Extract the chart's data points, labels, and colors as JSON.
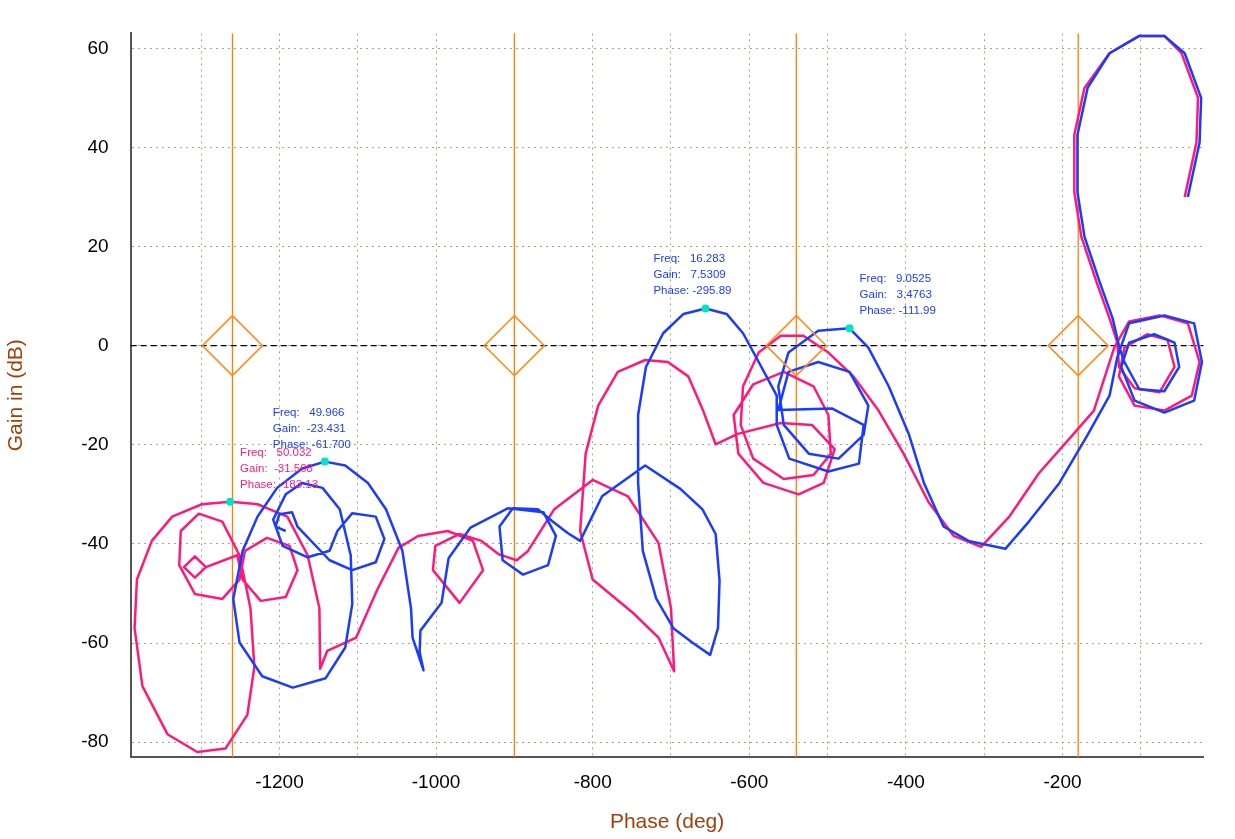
{
  "chart_data": {
    "type": "line",
    "xlabel": "Phase (deg)",
    "ylabel": "Gain in (dB)",
    "xlim": [
      -1390,
      -20
    ],
    "ylim": [
      -83,
      63
    ],
    "xticks": [
      {
        "value": -1300,
        "label": null
      },
      -1200,
      {
        "value": -1100,
        "label": null
      },
      -1000,
      {
        "value": -900,
        "label": null
      },
      -800,
      {
        "value": -700,
        "label": null
      },
      -600,
      {
        "value": -500,
        "label": null
      },
      -400,
      {
        "value": -300,
        "label": null
      },
      -200,
      {
        "value": -100,
        "label": null
      }
    ],
    "yticks": [
      -80,
      -60,
      -40,
      -20,
      0,
      20,
      40,
      60
    ],
    "grid": true,
    "legend": false,
    "marker": "none",
    "line_style": "solid",
    "ref_lines": [
      {
        "axis": "x",
        "value": -1260,
        "color": "#ff7f00"
      },
      {
        "axis": "x",
        "value": -900,
        "color": "#ff7f00"
      },
      {
        "axis": "x",
        "value": -540,
        "color": "#ff7f00"
      },
      {
        "axis": "x",
        "value": -180,
        "color": "#ff7f00"
      },
      {
        "axis": "y",
        "value": 0,
        "color": "#000000",
        "line_style": "dashed"
      }
    ],
    "annotations": [
      {
        "text": "Freq:   49.966\nGain:  -23.431\nPhase: -61.700",
        "x": -1142,
        "y": -23.4
      },
      {
        "text": "Freq:   50.032\nGain:  -31.508\nPhase: -183.13",
        "x": -1263,
        "y": -31.5
      },
      {
        "text": "Freq:   16.283\nGain:   7.5309\nPhase: -295.89",
        "x": -656,
        "y": 7.5
      },
      {
        "text": "Freq:   9.0525\nGain:   3.4763\nPhase: -111.99",
        "x": -472,
        "y": 3.5
      }
    ],
    "series": [
      {
        "color": "#ff1a7a",
        "x": [
          -44,
          -29,
          -27,
          -48,
          -70,
          -102,
          -140,
          -172,
          -185,
          -185,
          -176,
          -157,
          -140,
          -130,
          -128,
          -108,
          -76,
          -57,
          -66,
          -92,
          -121,
          -128,
          -108,
          -70,
          -35,
          -25,
          -40,
          -76,
          -115,
          -134,
          -160,
          -192,
          -230,
          -268,
          -304,
          -339,
          -371,
          -403,
          -435,
          -467,
          -499,
          -531,
          -560,
          -588,
          -608,
          -611,
          -595,
          -556,
          -518,
          -496,
          -499,
          -518,
          -556,
          -595,
          -620,
          -614,
          -582,
          -537,
          -505,
          -491,
          -520,
          -560,
          -615,
          -643,
          -659,
          -678,
          -704,
          -733,
          -768,
          -793,
          -809,
          -816,
          -800,
          -748,
          -716,
          -696,
          -700,
          -716,
          -755,
          -800,
          -849,
          -883,
          -897,
          -920,
          -942,
          -970,
          -1001,
          -1004,
          -970,
          -940,
          -953,
          -985,
          -1023,
          -1048,
          -1075,
          -1102,
          -1139,
          -1148,
          -1149,
          -1164,
          -1190,
          -1228,
          -1263,
          -1299,
          -1337,
          -1363,
          -1382,
          -1385,
          -1375,
          -1343,
          -1305,
          -1269,
          -1241,
          -1232,
          -1237,
          -1251,
          -1273,
          -1303,
          -1326,
          -1328,
          -1308,
          -1273,
          -1251,
          -1244,
          -1216,
          -1187,
          -1177,
          -1192,
          -1224,
          -1247,
          -1254,
          -1294,
          -1308,
          -1322,
          -1308,
          -1294
        ],
        "values": [
          30,
          41,
          50,
          59,
          62.5,
          62.5,
          59,
          52,
          42.5,
          31,
          22,
          13,
          5.5,
          0.6,
          -4.3,
          -8.6,
          -9.4,
          -4.3,
          1.2,
          2.3,
          -0.4,
          -6.2,
          -12.1,
          -13.1,
          -10.1,
          -3.3,
          4.5,
          6.1,
          4.9,
          -0.4,
          -13.1,
          -18.9,
          -25.7,
          -34.5,
          -40.6,
          -38.4,
          -31.6,
          -21.8,
          -13.1,
          -6.2,
          -1.4,
          2,
          2,
          -1.4,
          -8.2,
          -16,
          -22.8,
          -26.9,
          -26.1,
          -21.8,
          -14,
          -8.2,
          -5.3,
          -7.8,
          -14,
          -21.8,
          -27.7,
          -30,
          -27.7,
          -20.9,
          -16,
          -15.6,
          -17.8,
          -19.9,
          -13.1,
          -6.2,
          -3.3,
          -2.9,
          -5.3,
          -12.1,
          -21.8,
          -37.4,
          -47.2,
          -54,
          -58.9,
          -65.7,
          -53,
          -39.8,
          -30.4,
          -27.1,
          -33,
          -41.5,
          -43.3,
          -42.1,
          -39.4,
          -38,
          -40.4,
          -45.3,
          -51.9,
          -45.3,
          -39.4,
          -37.4,
          -38.4,
          -40.8,
          -49.2,
          -58.9,
          -61.6,
          -65.2,
          -53,
          -42.3,
          -34.5,
          -32,
          -31.5,
          -32,
          -34.5,
          -39.4,
          -47.2,
          -57,
          -68.7,
          -78.4,
          -82,
          -81.3,
          -74.5,
          -64.8,
          -53,
          -42.3,
          -35.5,
          -33.9,
          -37.4,
          -44.3,
          -50.1,
          -51.1,
          -47.2,
          -41.4,
          -38.8,
          -40.4,
          -45.3,
          -50.7,
          -51.5,
          -47.2,
          -42.3,
          -44.7,
          -46.8,
          -44.7,
          -42.5,
          -44.7
        ]
      },
      {
        "color": "#1a3cff",
        "x": [
          -40,
          -25,
          -23,
          -44,
          -70,
          -102,
          -140,
          -168,
          -181,
          -181,
          -172,
          -153,
          -136,
          -128,
          -121,
          -102,
          -70,
          -51,
          -57,
          -83,
          -115,
          -125,
          -108,
          -70,
          -32,
          -22,
          -32,
          -70,
          -115,
          -130,
          -140,
          -168,
          -204,
          -243,
          -273,
          -320,
          -352,
          -377,
          -396,
          -422,
          -448,
          -472,
          -512,
          -550,
          -563,
          -556,
          -524,
          -486,
          -454,
          -448,
          -472,
          -512,
          -550,
          -563,
          -494,
          -454,
          -460,
          -499,
          -549,
          -565,
          -565,
          -588,
          -608,
          -629,
          -656,
          -684,
          -710,
          -732,
          -742,
          -742,
          -736,
          -719,
          -697,
          -672,
          -650,
          -640,
          -638,
          -643,
          -660,
          -688,
          -733,
          -788,
          -816,
          -832,
          -851,
          -870,
          -902,
          -919,
          -915,
          -889,
          -857,
          -847,
          -863,
          -908,
          -956,
          -984,
          -993,
          -1020,
          -1021,
          -1016,
          -1030,
          -1032,
          -1043,
          -1064,
          -1087,
          -1116,
          -1142,
          -1171,
          -1203,
          -1228,
          -1247,
          -1259,
          -1251,
          -1222,
          -1183,
          -1141,
          -1116,
          -1107,
          -1109,
          -1123,
          -1145,
          -1171,
          -1192,
          -1208,
          -1196,
          -1164,
          -1136,
          -1126,
          -1107,
          -1077,
          -1066,
          -1077,
          -1107,
          -1136,
          -1177,
          -1184,
          -1200,
          -1205,
          -1192
        ],
        "values": [
          30,
          41,
          50,
          59,
          62.5,
          62.5,
          59,
          52,
          42.5,
          31,
          22,
          13,
          5.5,
          0,
          -3.3,
          -8.8,
          -9.2,
          -4.3,
          0.6,
          2.3,
          0.6,
          -4.3,
          -11.1,
          -13.5,
          -11.1,
          -3.3,
          4.5,
          6.1,
          4.5,
          -2.3,
          -10.1,
          -18,
          -27.7,
          -35.5,
          -41,
          -39.4,
          -36.5,
          -27.7,
          -18,
          -8.2,
          -0.4,
          3.5,
          3,
          -1.4,
          -8.2,
          -16,
          -21.8,
          -22.8,
          -18,
          -12.1,
          -5.3,
          -3.3,
          -5.3,
          -13,
          -12.7,
          -16,
          -23.8,
          -25.4,
          -22.8,
          -16,
          -10.1,
          -3.3,
          2.5,
          6.4,
          7.5,
          6.4,
          2.5,
          -4.3,
          -14,
          -27.7,
          -41.4,
          -51,
          -57,
          -60,
          -62.4,
          -57,
          -47.4,
          -38,
          -33,
          -28.9,
          -24.2,
          -30.4,
          -39.4,
          -37.8,
          -35.5,
          -33,
          -32.8,
          -36.5,
          -43.3,
          -46.2,
          -44.3,
          -38.4,
          -33.6,
          -32.8,
          -36.7,
          -42.9,
          -51.9,
          -57.5,
          -61.8,
          -65.5,
          -58.9,
          -53,
          -41.4,
          -33,
          -27.7,
          -24.2,
          -23.4,
          -24.8,
          -28.7,
          -34.5,
          -41.4,
          -51.1,
          -59.9,
          -66.7,
          -69,
          -67.1,
          -60.9,
          -52.1,
          -42.3,
          -33,
          -28.7,
          -27.7,
          -30,
          -35.1,
          -40.4,
          -42.7,
          -41.4,
          -37.4,
          -33.8,
          -34.5,
          -39,
          -43.7,
          -45.3,
          -43.3,
          -36.5,
          -33.6,
          -34,
          -36.5,
          -37.4
        ]
      },
      {
        "type": "scatter",
        "marker": "diamond",
        "color": "#ff8c1a",
        "x": [
          -1260,
          -900,
          -540,
          -180
        ],
        "values": [
          0,
          0,
          0,
          0
        ]
      }
    ]
  }
}
